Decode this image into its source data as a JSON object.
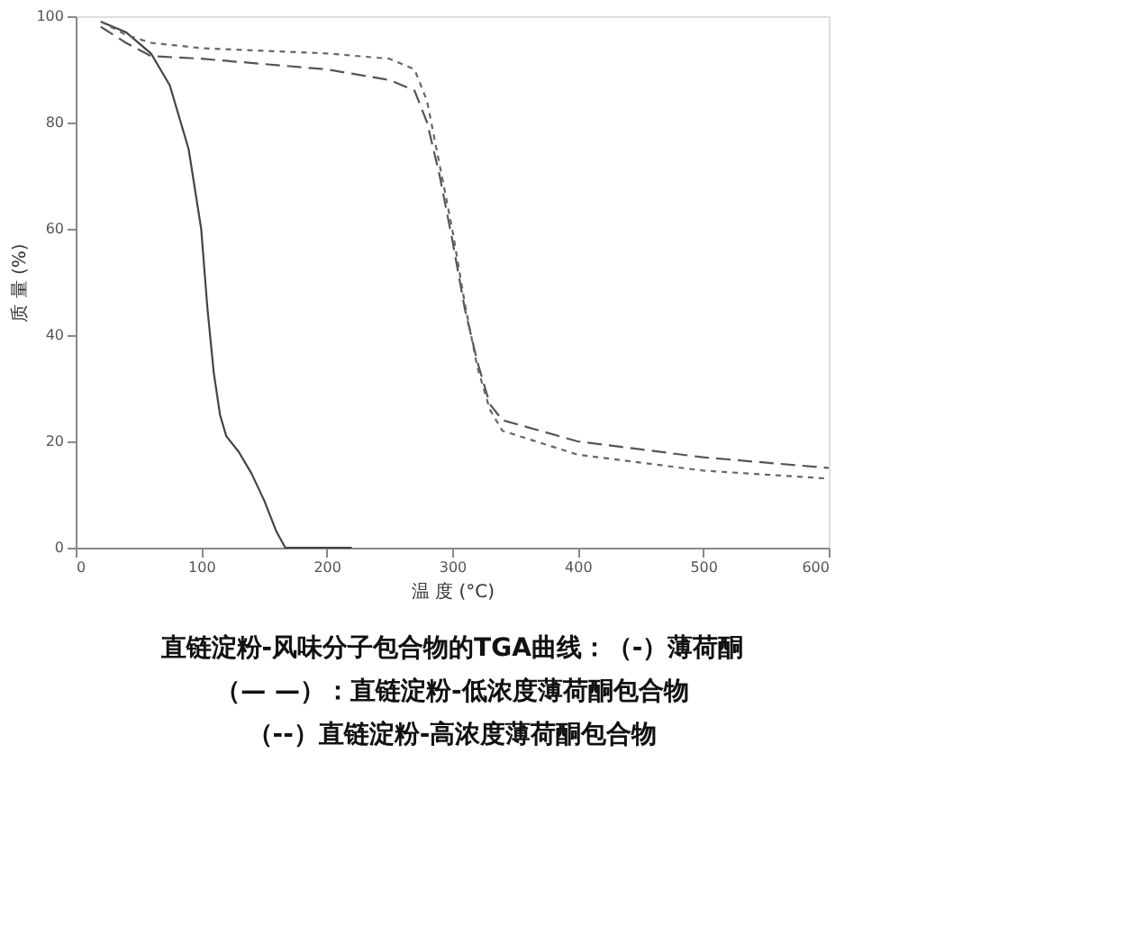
{
  "chart_data": {
    "type": "line",
    "xlabel": "温 度 (°C)",
    "ylabel": "质 量 (%)",
    "xlim": [
      0,
      600
    ],
    "xticks": [
      0,
      100,
      200,
      300,
      400,
      500,
      600
    ],
    "ylim": [
      0,
      100
    ],
    "yticks": [
      0,
      20,
      40,
      60,
      80,
      100
    ],
    "grid": false,
    "legend": false,
    "marker": "none",
    "series": [
      {
        "color": "#444444",
        "line_style": "solid",
        "x": [
          20,
          40,
          60,
          75,
          90,
          100,
          105,
          110,
          115,
          120,
          130,
          140,
          150,
          160,
          167,
          220
        ],
        "values": [
          99,
          97,
          93,
          87,
          75,
          60,
          45,
          33,
          25,
          21,
          18,
          14,
          9,
          3,
          0,
          0
        ]
      },
      {
        "color": "#555555",
        "line_style": "dashed",
        "x": [
          20,
          40,
          60,
          100,
          150,
          200,
          250,
          270,
          280,
          290,
          300,
          310,
          320,
          330,
          340,
          400,
          500,
          600
        ],
        "values": [
          98,
          95,
          92.5,
          92,
          91,
          90,
          88,
          86,
          80,
          70,
          58,
          45,
          35,
          27,
          24,
          20,
          17,
          15
        ]
      },
      {
        "color": "#666666",
        "line_style": "dotted",
        "x": [
          20,
          40,
          60,
          100,
          150,
          200,
          250,
          270,
          280,
          290,
          300,
          310,
          320,
          330,
          340,
          400,
          500,
          600
        ],
        "values": [
          99,
          96.5,
          95,
          94,
          93.5,
          93,
          92,
          90,
          84,
          72,
          60,
          46,
          34,
          26,
          22,
          17.5,
          14.5,
          13
        ]
      }
    ],
    "annotations": [
      "直链淀粉-风味分子包合物的TGA曲线：（-）薄荷酮",
      "（— —）：直链淀粉-低浓度薄荷酮包合物",
      "（--）直链淀粉-高浓度薄荷酮包合物"
    ]
  }
}
